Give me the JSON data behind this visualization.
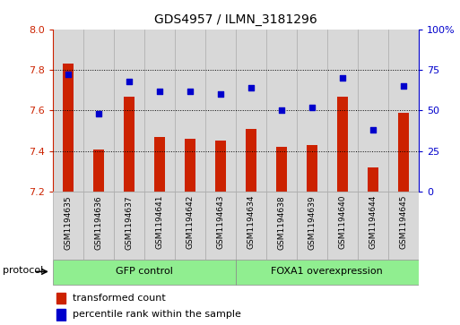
{
  "title": "GDS4957 / ILMN_3181296",
  "samples": [
    "GSM1194635",
    "GSM1194636",
    "GSM1194637",
    "GSM1194641",
    "GSM1194642",
    "GSM1194643",
    "GSM1194634",
    "GSM1194638",
    "GSM1194639",
    "GSM1194640",
    "GSM1194644",
    "GSM1194645"
  ],
  "red_values": [
    7.83,
    7.41,
    7.67,
    7.47,
    7.46,
    7.45,
    7.51,
    7.42,
    7.43,
    7.67,
    7.32,
    7.59
  ],
  "blue_values": [
    72,
    48,
    68,
    62,
    62,
    60,
    64,
    50,
    52,
    70,
    38,
    65
  ],
  "ylim_left": [
    7.2,
    8.0
  ],
  "ylim_right": [
    0,
    100
  ],
  "yticks_left": [
    7.2,
    7.4,
    7.6,
    7.8,
    8.0
  ],
  "yticks_right": [
    0,
    25,
    50,
    75,
    100
  ],
  "ytick_labels_right": [
    "0",
    "25",
    "50",
    "75",
    "100%"
  ],
  "red_color": "#cc2200",
  "blue_color": "#0000cc",
  "bar_width": 0.35,
  "group1_label": "GFP control",
  "group2_label": "FOXA1 overexpression",
  "group1_count": 6,
  "group2_count": 6,
  "protocol_label": "protocol",
  "legend1": "transformed count",
  "legend2": "percentile rank within the sample",
  "col_bg": "#d8d8d8",
  "col_border": "#aaaaaa",
  "grid_dotted_ticks": [
    7.4,
    7.6,
    7.8
  ],
  "green_color": "#90ee90"
}
